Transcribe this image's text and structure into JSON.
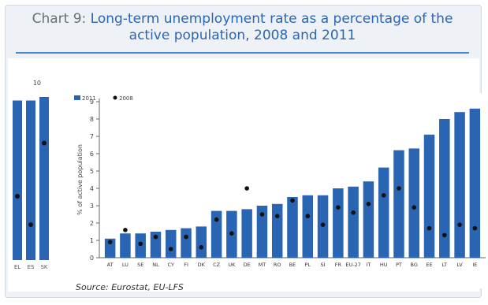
{
  "title_prefix": "Chart 9:",
  "title_main": "Long-term unemployment rate as a percentage of the active population, 2008 and 2011",
  "source": "Source: Eurostat, EU-LFS",
  "chart_data": {
    "type": "bar",
    "title": "Long-term unemployment rate as a percentage of the active population, 2008 and 2011",
    "ylabel": "% of active population",
    "ylim": [
      0,
      9
    ],
    "yticks": [
      0,
      1,
      2,
      3,
      4,
      5,
      6,
      7,
      8,
      9
    ],
    "back_ytick_label": "10",
    "categories": [
      "AT",
      "LU",
      "SE",
      "NL",
      "CY",
      "FI",
      "DK",
      "CZ",
      "UK",
      "DE",
      "MT",
      "RO",
      "BE",
      "PL",
      "SI",
      "FR",
      "EU-27",
      "IT",
      "HU",
      "PT",
      "BG",
      "EE",
      "LT",
      "LV",
      "IE"
    ],
    "series": [
      {
        "name": "2011",
        "type": "bar",
        "color": "#2a65b4",
        "values": [
          1.1,
          1.4,
          1.4,
          1.5,
          1.6,
          1.7,
          1.8,
          2.7,
          2.7,
          2.8,
          3.0,
          3.1,
          3.5,
          3.6,
          3.6,
          4.0,
          4.1,
          4.4,
          5.2,
          6.2,
          6.3,
          7.1,
          8.0,
          8.4,
          8.6
        ]
      },
      {
        "name": "2008",
        "type": "marker",
        "color": "#111111",
        "values": [
          0.9,
          1.6,
          0.8,
          1.2,
          0.5,
          1.2,
          0.6,
          2.2,
          1.4,
          4.0,
          2.5,
          2.4,
          3.3,
          2.4,
          1.9,
          2.9,
          2.6,
          3.1,
          3.6,
          4.0,
          2.9,
          1.7,
          1.3,
          1.9,
          1.7
        ]
      }
    ],
    "back_left_categories": [
      "EL",
      "ES",
      "SK"
    ],
    "back_left_values": [
      9.0,
      9.0,
      9.2
    ],
    "back_left_markers": [
      3.6,
      2.0,
      6.6
    ],
    "grid": false,
    "legend": "top-left"
  }
}
